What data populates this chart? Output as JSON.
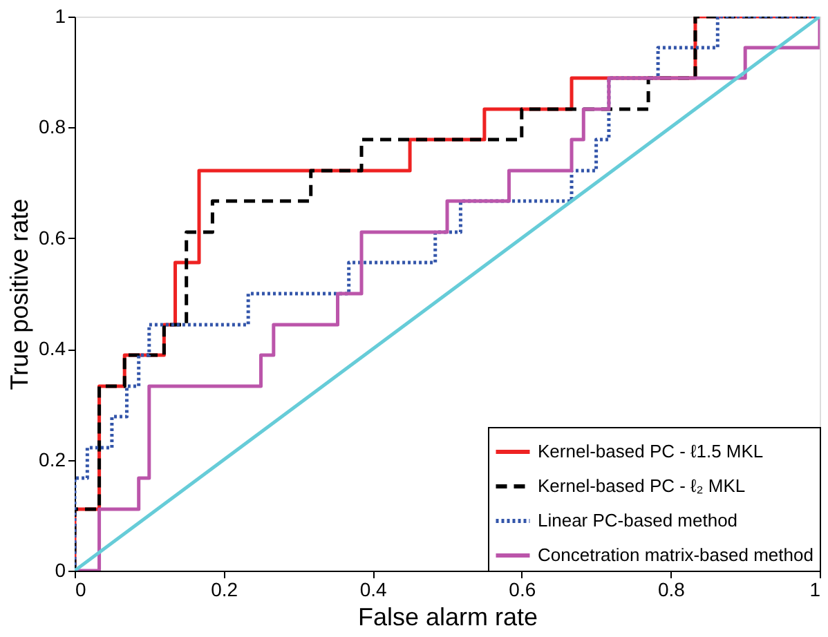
{
  "chart_data": {
    "type": "line",
    "xlabel": "False alarm rate",
    "ylabel": "True positive rate",
    "xlim": [
      0,
      1
    ],
    "ylim": [
      0,
      1
    ],
    "xticks": [
      0,
      0.2,
      0.4,
      0.6,
      0.8,
      1
    ],
    "yticks": [
      0,
      0.2,
      0.4,
      0.6,
      0.8,
      1
    ],
    "grid": false,
    "legend": "bottom right",
    "marker": "none",
    "series": [
      {
        "name": "Kernel-based PC - ℓ1.5 MKL",
        "color": "#ee2222",
        "line_style": "solid",
        "x": [
          0,
          0,
          0.033,
          0.033,
          0.067,
          0.067,
          0.12,
          0.12,
          0.135,
          0.135,
          0.167,
          0.167,
          0.45,
          0.45,
          0.55,
          0.55,
          0.667,
          0.667,
          0.833,
          0.833,
          1
        ],
        "values": [
          0,
          0.111,
          0.111,
          0.333,
          0.333,
          0.389,
          0.389,
          0.444,
          0.444,
          0.556,
          0.556,
          0.722,
          0.722,
          0.778,
          0.778,
          0.833,
          0.833,
          0.889,
          0.889,
          1,
          1
        ]
      },
      {
        "name": "Kernel-based PC - ℓ₂  MKL",
        "color": "#000000",
        "line_style": "dashed",
        "x": [
          0,
          0,
          0.033,
          0.033,
          0.067,
          0.067,
          0.12,
          0.12,
          0.15,
          0.15,
          0.185,
          0.185,
          0.317,
          0.317,
          0.385,
          0.385,
          0.6,
          0.6,
          0.77,
          0.77,
          0.833,
          0.833,
          1
        ],
        "values": [
          0,
          0.111,
          0.111,
          0.333,
          0.333,
          0.389,
          0.389,
          0.444,
          0.444,
          0.611,
          0.611,
          0.667,
          0.667,
          0.722,
          0.722,
          0.778,
          0.778,
          0.833,
          0.833,
          0.889,
          0.889,
          1,
          1
        ]
      },
      {
        "name": "Linear PC-based method",
        "color": "#3355aa",
        "line_style": "dotted",
        "x": [
          0,
          0,
          0.017,
          0.017,
          0.05,
          0.05,
          0.07,
          0.07,
          0.086,
          0.086,
          0.1,
          0.1,
          0.233,
          0.233,
          0.368,
          0.368,
          0.484,
          0.484,
          0.518,
          0.518,
          0.667,
          0.667,
          0.7,
          0.7,
          0.717,
          0.717,
          0.783,
          0.783,
          0.863,
          0.863,
          1
        ],
        "values": [
          0,
          0.167,
          0.167,
          0.222,
          0.222,
          0.278,
          0.278,
          0.333,
          0.333,
          0.389,
          0.389,
          0.444,
          0.444,
          0.5,
          0.5,
          0.556,
          0.556,
          0.611,
          0.611,
          0.667,
          0.667,
          0.722,
          0.722,
          0.778,
          0.778,
          0.889,
          0.889,
          0.944,
          0.944,
          1,
          1
        ]
      },
      {
        "name": "Concetration matrix-based method",
        "color": "#bb55aa",
        "line_style": "solid",
        "x": [
          0,
          0.033,
          0.033,
          0.086,
          0.086,
          0.1,
          0.1,
          0.25,
          0.25,
          0.267,
          0.267,
          0.353,
          0.353,
          0.385,
          0.385,
          0.5,
          0.5,
          0.583,
          0.583,
          0.667,
          0.667,
          0.683,
          0.683,
          0.717,
          0.717,
          0.9,
          0.9,
          1,
          1
        ],
        "values": [
          0,
          0,
          0.111,
          0.111,
          0.167,
          0.167,
          0.333,
          0.333,
          0.389,
          0.389,
          0.444,
          0.444,
          0.5,
          0.5,
          0.611,
          0.611,
          0.667,
          0.667,
          0.722,
          0.722,
          0.778,
          0.778,
          0.833,
          0.833,
          0.889,
          0.889,
          0.944,
          0.944,
          1
        ]
      },
      {
        "color": "#66ccd8",
        "line_style": "solid",
        "x": [
          0,
          1
        ],
        "values": [
          0,
          1
        ]
      }
    ]
  }
}
